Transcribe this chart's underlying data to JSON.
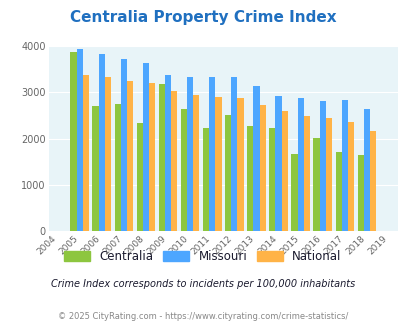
{
  "title": "Centralia Property Crime Index",
  "years": [
    2004,
    2005,
    2006,
    2007,
    2008,
    2009,
    2010,
    2011,
    2012,
    2013,
    2014,
    2015,
    2016,
    2017,
    2018,
    2019
  ],
  "centralia": [
    null,
    3880,
    2700,
    2750,
    2330,
    3180,
    2640,
    2220,
    2520,
    2270,
    2230,
    1660,
    2020,
    1700,
    1650,
    null
  ],
  "missouri": [
    null,
    3940,
    3830,
    3720,
    3640,
    3380,
    3340,
    3330,
    3330,
    3130,
    2930,
    2870,
    2820,
    2840,
    2640,
    null
  ],
  "national": [
    null,
    3380,
    3330,
    3250,
    3200,
    3020,
    2940,
    2900,
    2870,
    2720,
    2590,
    2490,
    2440,
    2360,
    2170,
    null
  ],
  "bar_colors": {
    "centralia": "#8dc63f",
    "missouri": "#4da6ff",
    "national": "#ffb347"
  },
  "bg_color": "#e8f4f8",
  "ylim": [
    0,
    4000
  ],
  "yticks": [
    0,
    1000,
    2000,
    3000,
    4000
  ],
  "subtitle": "Crime Index corresponds to incidents per 100,000 inhabitants",
  "footer": "© 2025 CityRating.com - https://www.cityrating.com/crime-statistics/",
  "title_color": "#2070c0",
  "subtitle_color": "#1a1a2e",
  "footer_color": "#888888",
  "legend_text_color": "#1a1a2e"
}
